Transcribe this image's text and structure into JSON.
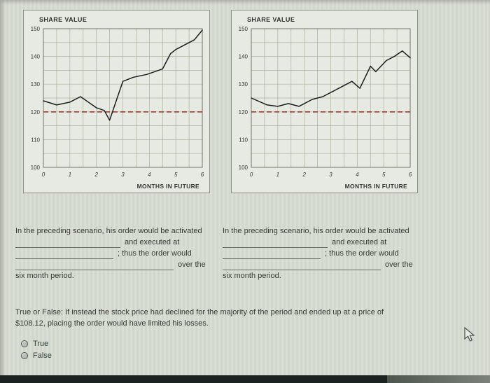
{
  "page": {
    "bg_color": "#d7dcd3",
    "panel_bg_color": "#e7eae2",
    "grid_color": "#a9b29e",
    "bottom_bar_color": "#1a2320"
  },
  "chart_data": [
    {
      "type": "line",
      "title": "SHARE VALUE",
      "xlabel": "MONTHS IN FUTURE",
      "ylabel": "SHARE VALUE",
      "xlim": [
        0,
        6
      ],
      "ylim": [
        100,
        150
      ],
      "x_ticks": [
        0,
        1,
        2,
        3,
        4,
        5,
        6
      ],
      "y_ticks": [
        100,
        110,
        120,
        130,
        140,
        150
      ],
      "grid": true,
      "legend": "none",
      "threshold_line": {
        "value": 120,
        "style": "dashed",
        "color": "#9e3a2a"
      },
      "series": [
        {
          "name": "share value",
          "color": "#1d1d1d",
          "points": [
            [
              0,
              124
            ],
            [
              0.5,
              122.5
            ],
            [
              1,
              123.5
            ],
            [
              1.4,
              125.5
            ],
            [
              2,
              121.5
            ],
            [
              2.3,
              120.5
            ],
            [
              2.5,
              117
            ],
            [
              3,
              131
            ],
            [
              3.4,
              132.5
            ],
            [
              3.9,
              133.5
            ],
            [
              4.2,
              134.5
            ],
            [
              4.5,
              135.5
            ],
            [
              4.8,
              141
            ],
            [
              5,
              142.5
            ],
            [
              5.4,
              144.5
            ],
            [
              5.7,
              146
            ],
            [
              6,
              149.5
            ]
          ]
        }
      ]
    },
    {
      "type": "line",
      "title": "SHARE VALUE",
      "xlabel": "MONTHS IN FUTURE",
      "ylabel": "SHARE VALUE",
      "xlim": [
        0,
        6
      ],
      "ylim": [
        100,
        150
      ],
      "x_ticks": [
        0,
        1,
        2,
        3,
        4,
        5,
        6
      ],
      "y_ticks": [
        100,
        110,
        120,
        130,
        140,
        150
      ],
      "grid": true,
      "legend": "none",
      "threshold_line": {
        "value": 120,
        "style": "dashed",
        "color": "#9e3a2a"
      },
      "series": [
        {
          "name": "share value",
          "color": "#1d1d1d",
          "points": [
            [
              0,
              125
            ],
            [
              0.6,
              122.5
            ],
            [
              1,
              122
            ],
            [
              1.4,
              123
            ],
            [
              1.8,
              122
            ],
            [
              2.3,
              124.5
            ],
            [
              2.7,
              125.5
            ],
            [
              3,
              127
            ],
            [
              3.4,
              129
            ],
            [
              3.8,
              131
            ],
            [
              4.1,
              128.5
            ],
            [
              4.5,
              136.5
            ],
            [
              4.7,
              134.5
            ],
            [
              5.1,
              138.5
            ],
            [
              5.4,
              140
            ],
            [
              5.7,
              142
            ],
            [
              6,
              139.5
            ]
          ]
        }
      ]
    }
  ],
  "question": {
    "line1": "In the preceding scenario, his order would be activated",
    "line2_suffix": "and executed at",
    "line3_suffix": "; thus the order would",
    "line4_suffix": "over the",
    "line5": "six month period."
  },
  "true_false": {
    "prompt_line1": "True or False: If instead the stock price had declined for the majority of the period and ended up at a price of",
    "prompt_line2": "$108.12, placing the order would have limited his losses.",
    "options": [
      "True",
      "False"
    ]
  }
}
